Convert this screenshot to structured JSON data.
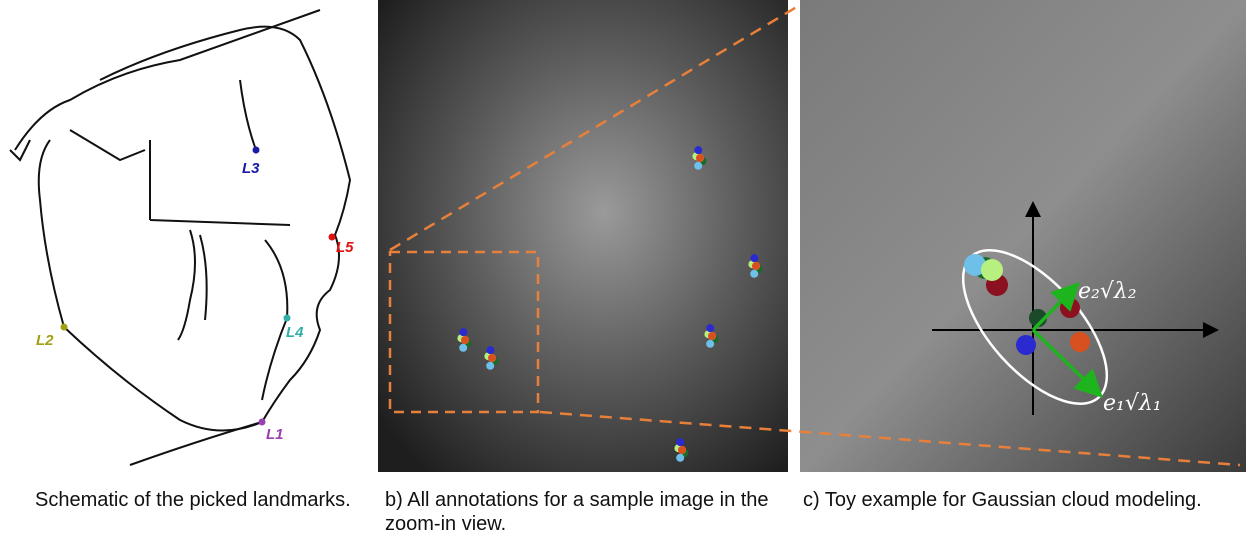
{
  "panel_a": {
    "landmarks": [
      "L1",
      "L2",
      "L3",
      "L4",
      "L5"
    ],
    "caption": "Schematic of the picked landmarks."
  },
  "panel_b": {
    "caption": "b) All annotations for a sample image in the zoom-in view."
  },
  "panel_c": {
    "axis_labels": [
      "e₂√λ₂",
      "e₁√λ₁"
    ],
    "caption": "c) Toy example for Gaussian cloud modeling."
  }
}
